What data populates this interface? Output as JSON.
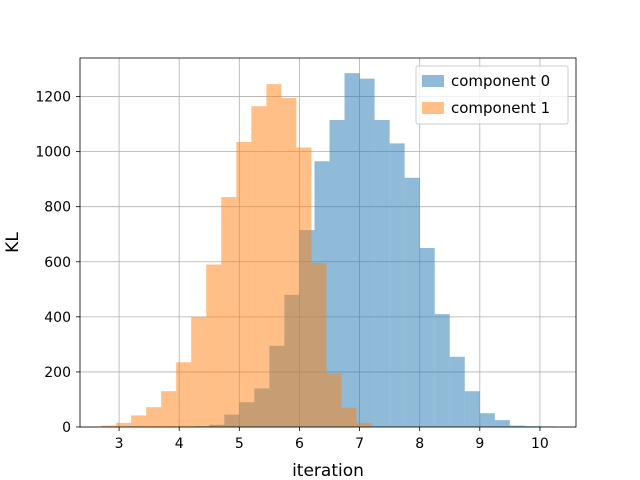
{
  "chart_data": {
    "type": "histogram",
    "xlabel": "iteration",
    "ylabel": "KL",
    "xlim": [
      2.35,
      10.6
    ],
    "ylim": [
      0,
      1340
    ],
    "xticks": [
      3,
      4,
      5,
      6,
      7,
      8,
      9,
      10
    ],
    "yticks": [
      0,
      200,
      400,
      600,
      800,
      1000,
      1200
    ],
    "grid": true,
    "legend_position": "top-right",
    "series": [
      {
        "name": "component 0",
        "color": "#1f77b4",
        "alpha": 0.5,
        "bin_edges": [
          4.0,
          4.25,
          4.5,
          4.75,
          5.0,
          5.25,
          5.5,
          5.75,
          6.0,
          6.25,
          6.5,
          6.75,
          7.0,
          7.25,
          7.5,
          7.75,
          8.0,
          8.25,
          8.5,
          8.75,
          9.0,
          9.25,
          9.5,
          9.75,
          10.0,
          10.25
        ],
        "counts": [
          2,
          3,
          8,
          45,
          90,
          140,
          295,
          480,
          715,
          965,
          1115,
          1285,
          1265,
          1115,
          1030,
          905,
          650,
          410,
          255,
          130,
          50,
          25,
          5,
          3,
          2
        ]
      },
      {
        "name": "component 1",
        "color": "#ff7f0e",
        "alpha": 0.5,
        "bin_edges": [
          2.7,
          2.95,
          3.2,
          3.45,
          3.7,
          3.95,
          4.2,
          4.45,
          4.7,
          4.95,
          5.2,
          5.45,
          5.7,
          5.95,
          6.2,
          6.45,
          6.7,
          6.95,
          7.2
        ],
        "counts": [
          5,
          15,
          42,
          72,
          130,
          235,
          400,
          590,
          835,
          1035,
          1165,
          1245,
          1195,
          1015,
          595,
          195,
          70,
          15
        ]
      }
    ]
  }
}
